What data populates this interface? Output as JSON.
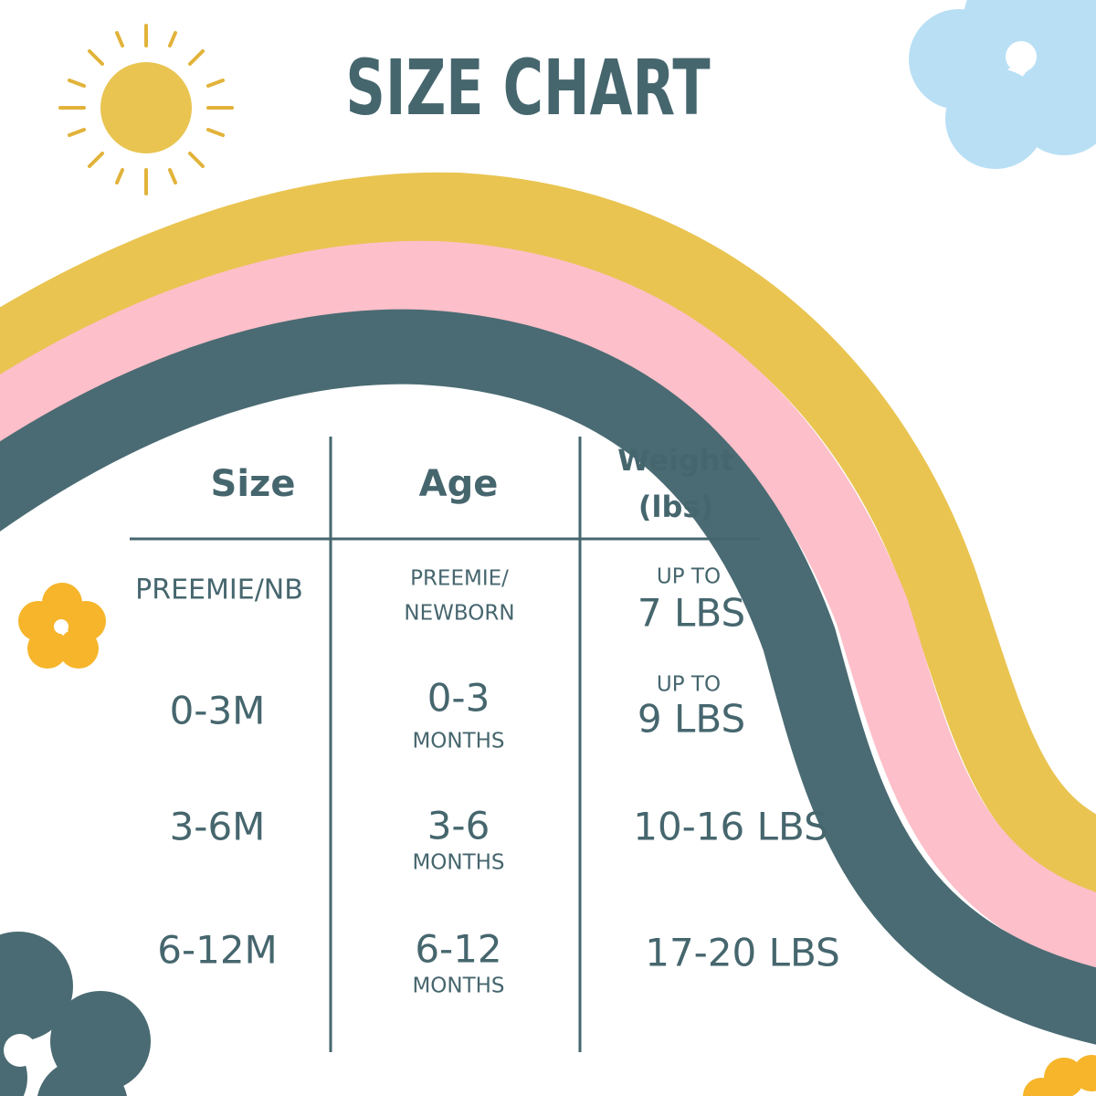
{
  "title": "SIZE CHART",
  "table": {
    "headers": [
      [
        "Size"
      ],
      [
        "Age"
      ],
      [
        "Weight",
        "(lbs)"
      ]
    ],
    "rows": [
      [
        [
          "PREEMIE/NB"
        ],
        [
          "PREEMIE/",
          "NEWBORN"
        ],
        [
          "UP TO",
          "7 LBS"
        ]
      ],
      [
        [
          "0-3M"
        ],
        [
          "0-3",
          "MONTHS"
        ],
        [
          "UP TO",
          "9 LBS"
        ]
      ],
      [
        [
          "3-6M"
        ],
        [
          "3-6",
          "MONTHS"
        ],
        [
          "10-16 LBS"
        ]
      ],
      [
        [
          "6-12M"
        ],
        [
          "6-12",
          "MONTHS"
        ],
        [
          "17-20 LBS"
        ]
      ]
    ]
  }
}
